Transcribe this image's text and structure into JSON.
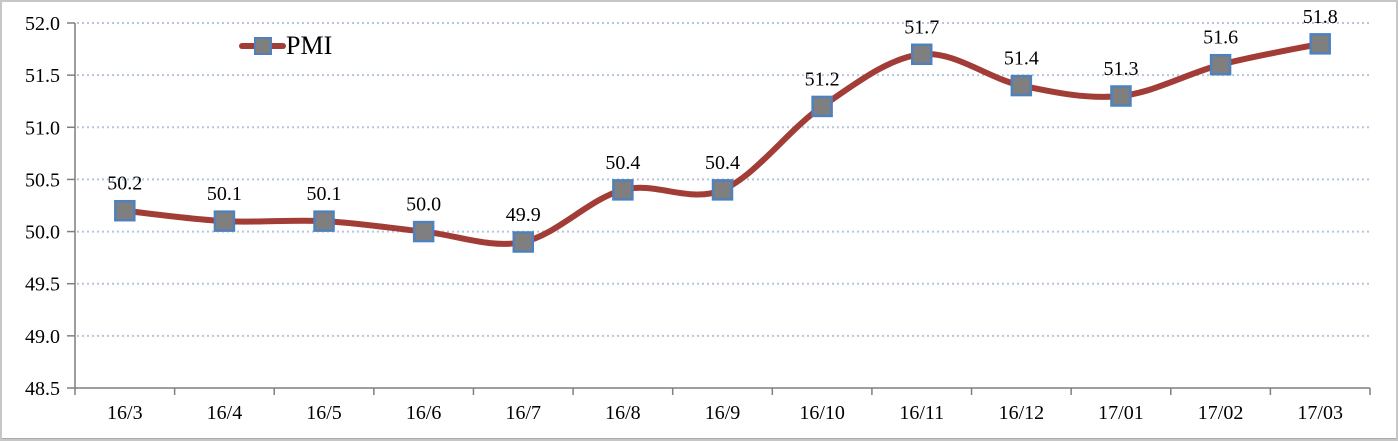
{
  "chart_data": {
    "type": "line",
    "title": "",
    "categories": [
      "16/3",
      "16/4",
      "16/5",
      "16/6",
      "16/7",
      "16/8",
      "16/9",
      "16/10",
      "16/11",
      "16/12",
      "17/01",
      "17/02",
      "17/03"
    ],
    "series": [
      {
        "name": "PMI",
        "values": [
          50.2,
          50.1,
          50.1,
          50.0,
          49.9,
          50.4,
          50.4,
          51.2,
          51.7,
          51.4,
          51.3,
          51.6,
          51.8
        ],
        "labels": [
          "50.2",
          "50.1",
          "50.1",
          "50.0",
          "49.9",
          "50.4",
          "50.4",
          "51.2",
          "51.7",
          "51.4",
          "51.3",
          "51.6",
          "51.8"
        ]
      }
    ],
    "y_ticks": [
      "52.0",
      "51.5",
      "51.0",
      "50.5",
      "50.0",
      "49.5",
      "49.0",
      "48.5"
    ],
    "ylim": [
      48.5,
      52.0
    ],
    "xlabel": "",
    "ylabel": "",
    "grid": "horizontal-dotted",
    "legend_position": "inside-top-left",
    "line_smooth": true,
    "marker_shape": "square",
    "colors": {
      "line": "#A23C37",
      "marker_fill": "#7F7F7F",
      "marker_border": "#4F81BD",
      "gridline": "#B5C5DC",
      "axis": "#7F7F7F",
      "text": "#000000",
      "frame_border": "#C6C6C6"
    }
  }
}
